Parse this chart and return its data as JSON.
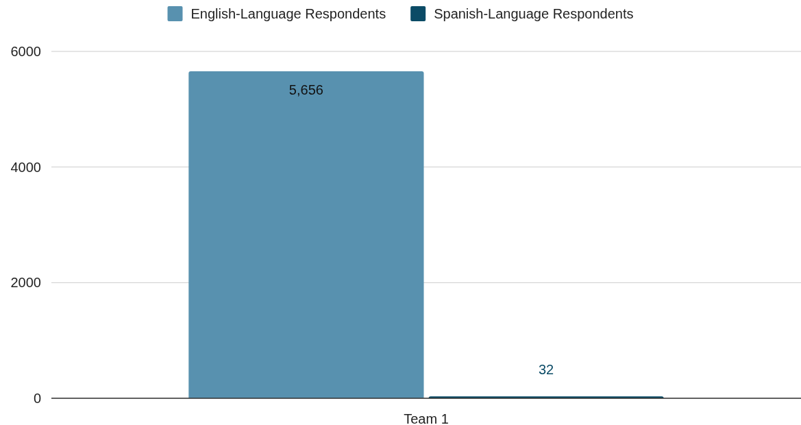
{
  "chart_data": {
    "type": "bar",
    "categories": [
      "Team 1"
    ],
    "series": [
      {
        "name": "English-Language Respondents",
        "color": "#5891af",
        "values": [
          5656
        ],
        "value_labels": [
          "5,656"
        ]
      },
      {
        "name": "Spanish-Language Respondents",
        "color": "#0b4b66",
        "values": [
          32
        ],
        "value_labels": [
          "32"
        ]
      }
    ],
    "ylim": [
      0,
      6000
    ],
    "yticks": [
      0,
      2000,
      4000,
      6000
    ],
    "grid": "y",
    "legend": "top"
  }
}
